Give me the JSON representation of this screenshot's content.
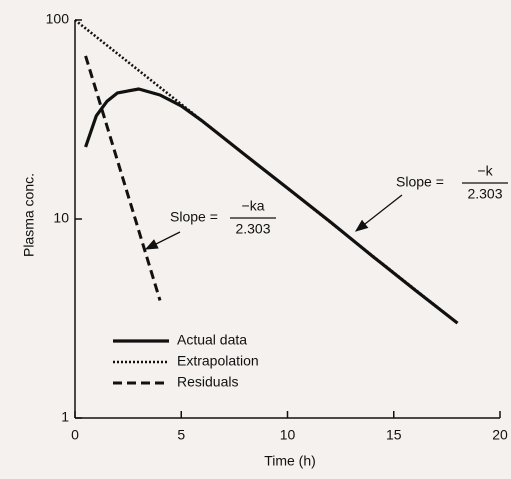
{
  "chart_data": {
    "type": "line",
    "xlabel": "Time (h)",
    "ylabel": "Plasma conc.",
    "xlim": [
      0,
      20
    ],
    "xticks": [
      0,
      5,
      10,
      15,
      20
    ],
    "ylim": [
      1,
      100
    ],
    "yticks": [
      1,
      10,
      100
    ],
    "yscale": "log",
    "legend": "lower left",
    "series": [
      {
        "name": "Actual data",
        "color": "#111111",
        "style": "solid",
        "x": [
          0.5,
          1,
          1.5,
          2,
          3,
          4,
          5,
          6,
          8,
          10,
          12,
          14,
          16,
          18
        ],
        "values": [
          23,
          33,
          39,
          43,
          45,
          42,
          37,
          31,
          21,
          14.3,
          9.7,
          6.5,
          4.4,
          3
        ]
      },
      {
        "name": "Extrapolation",
        "color": "#111111",
        "style": "dotted",
        "x": [
          0,
          18
        ],
        "values": [
          100,
          3
        ]
      },
      {
        "name": "Residuals",
        "color": "#111111",
        "style": "dashed",
        "x": [
          0.5,
          4
        ],
        "values": [
          66,
          3.9
        ]
      }
    ],
    "annotations": [
      {
        "text": "Slope =",
        "numerator": "−ka",
        "denominator": "2.303"
      },
      {
        "text": "Slope =",
        "numerator": "−k",
        "denominator": "2.303"
      }
    ]
  }
}
